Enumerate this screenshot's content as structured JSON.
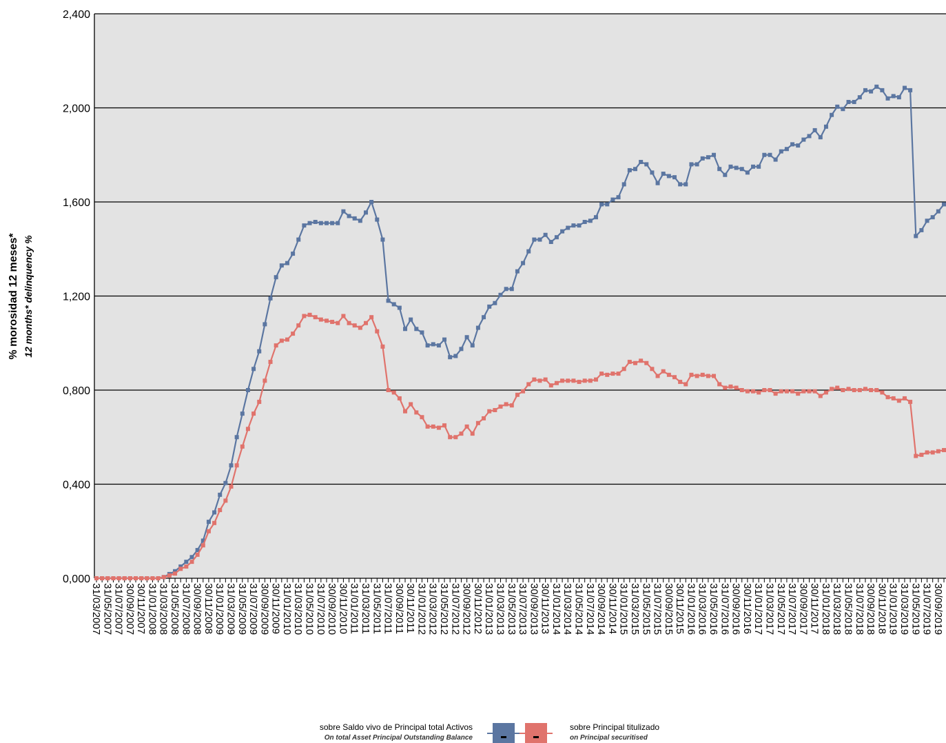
{
  "chart_data": {
    "type": "line",
    "y_label": "% morosidad 12 meses*",
    "y_label_en": "12 months* delinquency %",
    "ylim": [
      0,
      2.4
    ],
    "yticks": [
      {
        "value": 0,
        "label": "0,000"
      },
      {
        "value": 0.4,
        "label": "0,400"
      },
      {
        "value": 0.8,
        "label": "0,800"
      },
      {
        "value": 1.2,
        "label": "1,200"
      },
      {
        "value": 1.6,
        "label": "1,600"
      },
      {
        "value": 2.0,
        "label": "2,000"
      },
      {
        "value": 2.4,
        "label": "2,400"
      }
    ],
    "grid": true,
    "legend": "bottom",
    "categories": [
      "31/03/2007",
      null,
      "31/05/2007",
      null,
      "31/07/2007",
      null,
      "30/09/2007",
      null,
      "30/11/2007",
      null,
      "31/01/2008",
      null,
      "31/03/2008",
      null,
      "31/05/2008",
      null,
      "31/07/2008",
      null,
      "30/09/2008",
      null,
      "30/11/2008",
      null,
      "31/01/2009",
      null,
      "31/03/2009",
      null,
      "31/05/2009",
      null,
      "31/07/2009",
      null,
      "30/09/2009",
      null,
      "30/11/2009",
      null,
      "31/01/2010",
      null,
      "31/03/2010",
      null,
      "31/05/2010",
      null,
      "31/07/2010",
      null,
      "30/09/2010",
      null,
      "30/11/2010",
      null,
      "31/01/2011",
      null,
      "31/03/2011",
      null,
      "31/05/2011",
      null,
      "31/07/2011",
      null,
      "30/09/2011",
      null,
      "30/11/2011",
      null,
      "31/01/2012",
      null,
      "31/03/2012",
      null,
      "31/05/2012",
      null,
      "31/07/2012",
      null,
      "30/09/2012",
      null,
      "30/11/2012",
      null,
      "31/01/2013",
      null,
      "31/03/2013",
      null,
      "31/05/2013",
      null,
      "31/07/2013",
      null,
      "30/09/2013",
      null,
      "30/11/2013",
      null,
      "31/01/2014",
      null,
      "31/03/2014",
      null,
      "31/05/2014",
      null,
      "31/07/2014",
      null,
      "30/09/2014",
      null,
      "30/11/2014",
      null,
      "31/01/2015",
      null,
      "31/03/2015",
      null,
      "31/05/2015",
      null,
      "31/07/2015",
      null,
      "30/09/2015",
      null,
      "30/11/2015",
      null,
      "31/01/2016",
      null,
      "31/03/2016",
      null,
      "31/05/2016",
      null,
      "31/07/2016",
      null,
      "30/09/2016",
      null,
      "30/11/2016",
      null,
      "31/01/2017",
      null,
      "31/03/2017",
      null,
      "31/05/2017",
      null,
      "31/07/2017",
      null,
      "30/09/2017",
      null,
      "30/11/2017",
      null,
      "31/01/2018",
      null,
      "31/03/2018",
      null,
      "31/05/2018",
      null,
      "31/07/2018",
      null,
      "30/09/2018",
      null,
      "30/11/2018",
      null,
      "31/01/2019",
      null,
      "31/03/2019",
      null,
      "31/05/2019",
      null,
      "31/07/2019",
      null,
      "30/09/2019",
      null
    ],
    "series": [
      {
        "name": "sobre Saldo vivo de Principal total Activos",
        "name_en": "On total Asset Principal Outstanding Balance",
        "color": "#5b76a1",
        "values": [
          0,
          0,
          0,
          0,
          0,
          0,
          0,
          0,
          0,
          0,
          0,
          0,
          0.005,
          0.018,
          0.03,
          0.05,
          0.07,
          0.09,
          0.12,
          0.16,
          0.24,
          0.28,
          0.355,
          0.405,
          0.48,
          0.6,
          0.7,
          0.8,
          0.89,
          0.965,
          1.08,
          1.19,
          1.28,
          1.33,
          1.34,
          1.38,
          1.44,
          1.5,
          1.51,
          1.515,
          1.51,
          1.51,
          1.51,
          1.51,
          1.56,
          1.54,
          1.53,
          1.52,
          1.555,
          1.6,
          1.525,
          1.44,
          1.18,
          1.165,
          1.15,
          1.06,
          1.1,
          1.06,
          1.045,
          0.99,
          0.995,
          0.99,
          1.015,
          0.94,
          0.945,
          0.975,
          1.025,
          0.99,
          1.065,
          1.11,
          1.155,
          1.17,
          1.205,
          1.23,
          1.23,
          1.305,
          1.34,
          1.39,
          1.44,
          1.44,
          1.46,
          1.43,
          1.45,
          1.475,
          1.49,
          1.5,
          1.5,
          1.515,
          1.52,
          1.535,
          1.59,
          1.59,
          1.61,
          1.62,
          1.675,
          1.735,
          1.74,
          1.77,
          1.76,
          1.725,
          1.68,
          1.72,
          1.71,
          1.705,
          1.675,
          1.675,
          1.76,
          1.76,
          1.785,
          1.79,
          1.8,
          1.74,
          1.715,
          1.75,
          1.745,
          1.74,
          1.725,
          1.75,
          1.75,
          1.8,
          1.8,
          1.78,
          1.815,
          1.825,
          1.845,
          1.84,
          1.865,
          1.88,
          1.905,
          1.875,
          1.92,
          1.97,
          2.005,
          1.995,
          2.025,
          2.025,
          2.045,
          2.075,
          2.07,
          2.09,
          2.075,
          2.04,
          2.05,
          2.045,
          2.085,
          2.075,
          1.455,
          1.48,
          1.52,
          1.535,
          1.56,
          1.59
        ]
      },
      {
        "name": "sobre Principal titulizado",
        "name_en": "on Principal securitised",
        "color": "#e0736c",
        "values": [
          0,
          0,
          0,
          0,
          0,
          0,
          0,
          0,
          0,
          0,
          0,
          0,
          0.005,
          0.012,
          0.02,
          0.04,
          0.05,
          0.07,
          0.1,
          0.14,
          0.2,
          0.235,
          0.29,
          0.33,
          0.39,
          0.48,
          0.56,
          0.635,
          0.7,
          0.75,
          0.84,
          0.92,
          0.99,
          1.01,
          1.015,
          1.04,
          1.075,
          1.115,
          1.12,
          1.11,
          1.1,
          1.095,
          1.09,
          1.085,
          1.115,
          1.085,
          1.075,
          1.065,
          1.085,
          1.11,
          1.05,
          0.985,
          0.8,
          0.79,
          0.765,
          0.71,
          0.74,
          0.705,
          0.685,
          0.645,
          0.645,
          0.64,
          0.65,
          0.6,
          0.6,
          0.615,
          0.645,
          0.615,
          0.66,
          0.68,
          0.71,
          0.715,
          0.73,
          0.74,
          0.735,
          0.78,
          0.795,
          0.825,
          0.845,
          0.84,
          0.845,
          0.82,
          0.83,
          0.84,
          0.84,
          0.84,
          0.835,
          0.84,
          0.84,
          0.845,
          0.87,
          0.865,
          0.87,
          0.87,
          0.89,
          0.92,
          0.915,
          0.925,
          0.915,
          0.89,
          0.86,
          0.88,
          0.865,
          0.855,
          0.835,
          0.825,
          0.865,
          0.86,
          0.865,
          0.86,
          0.86,
          0.825,
          0.81,
          0.815,
          0.81,
          0.8,
          0.795,
          0.795,
          0.79,
          0.8,
          0.8,
          0.785,
          0.795,
          0.795,
          0.795,
          0.785,
          0.795,
          0.795,
          0.795,
          0.775,
          0.79,
          0.805,
          0.81,
          0.8,
          0.805,
          0.8,
          0.8,
          0.805,
          0.8,
          0.8,
          0.79,
          0.77,
          0.765,
          0.755,
          0.765,
          0.75,
          0.52,
          0.525,
          0.535,
          0.535,
          0.54,
          0.545
        ]
      }
    ]
  }
}
